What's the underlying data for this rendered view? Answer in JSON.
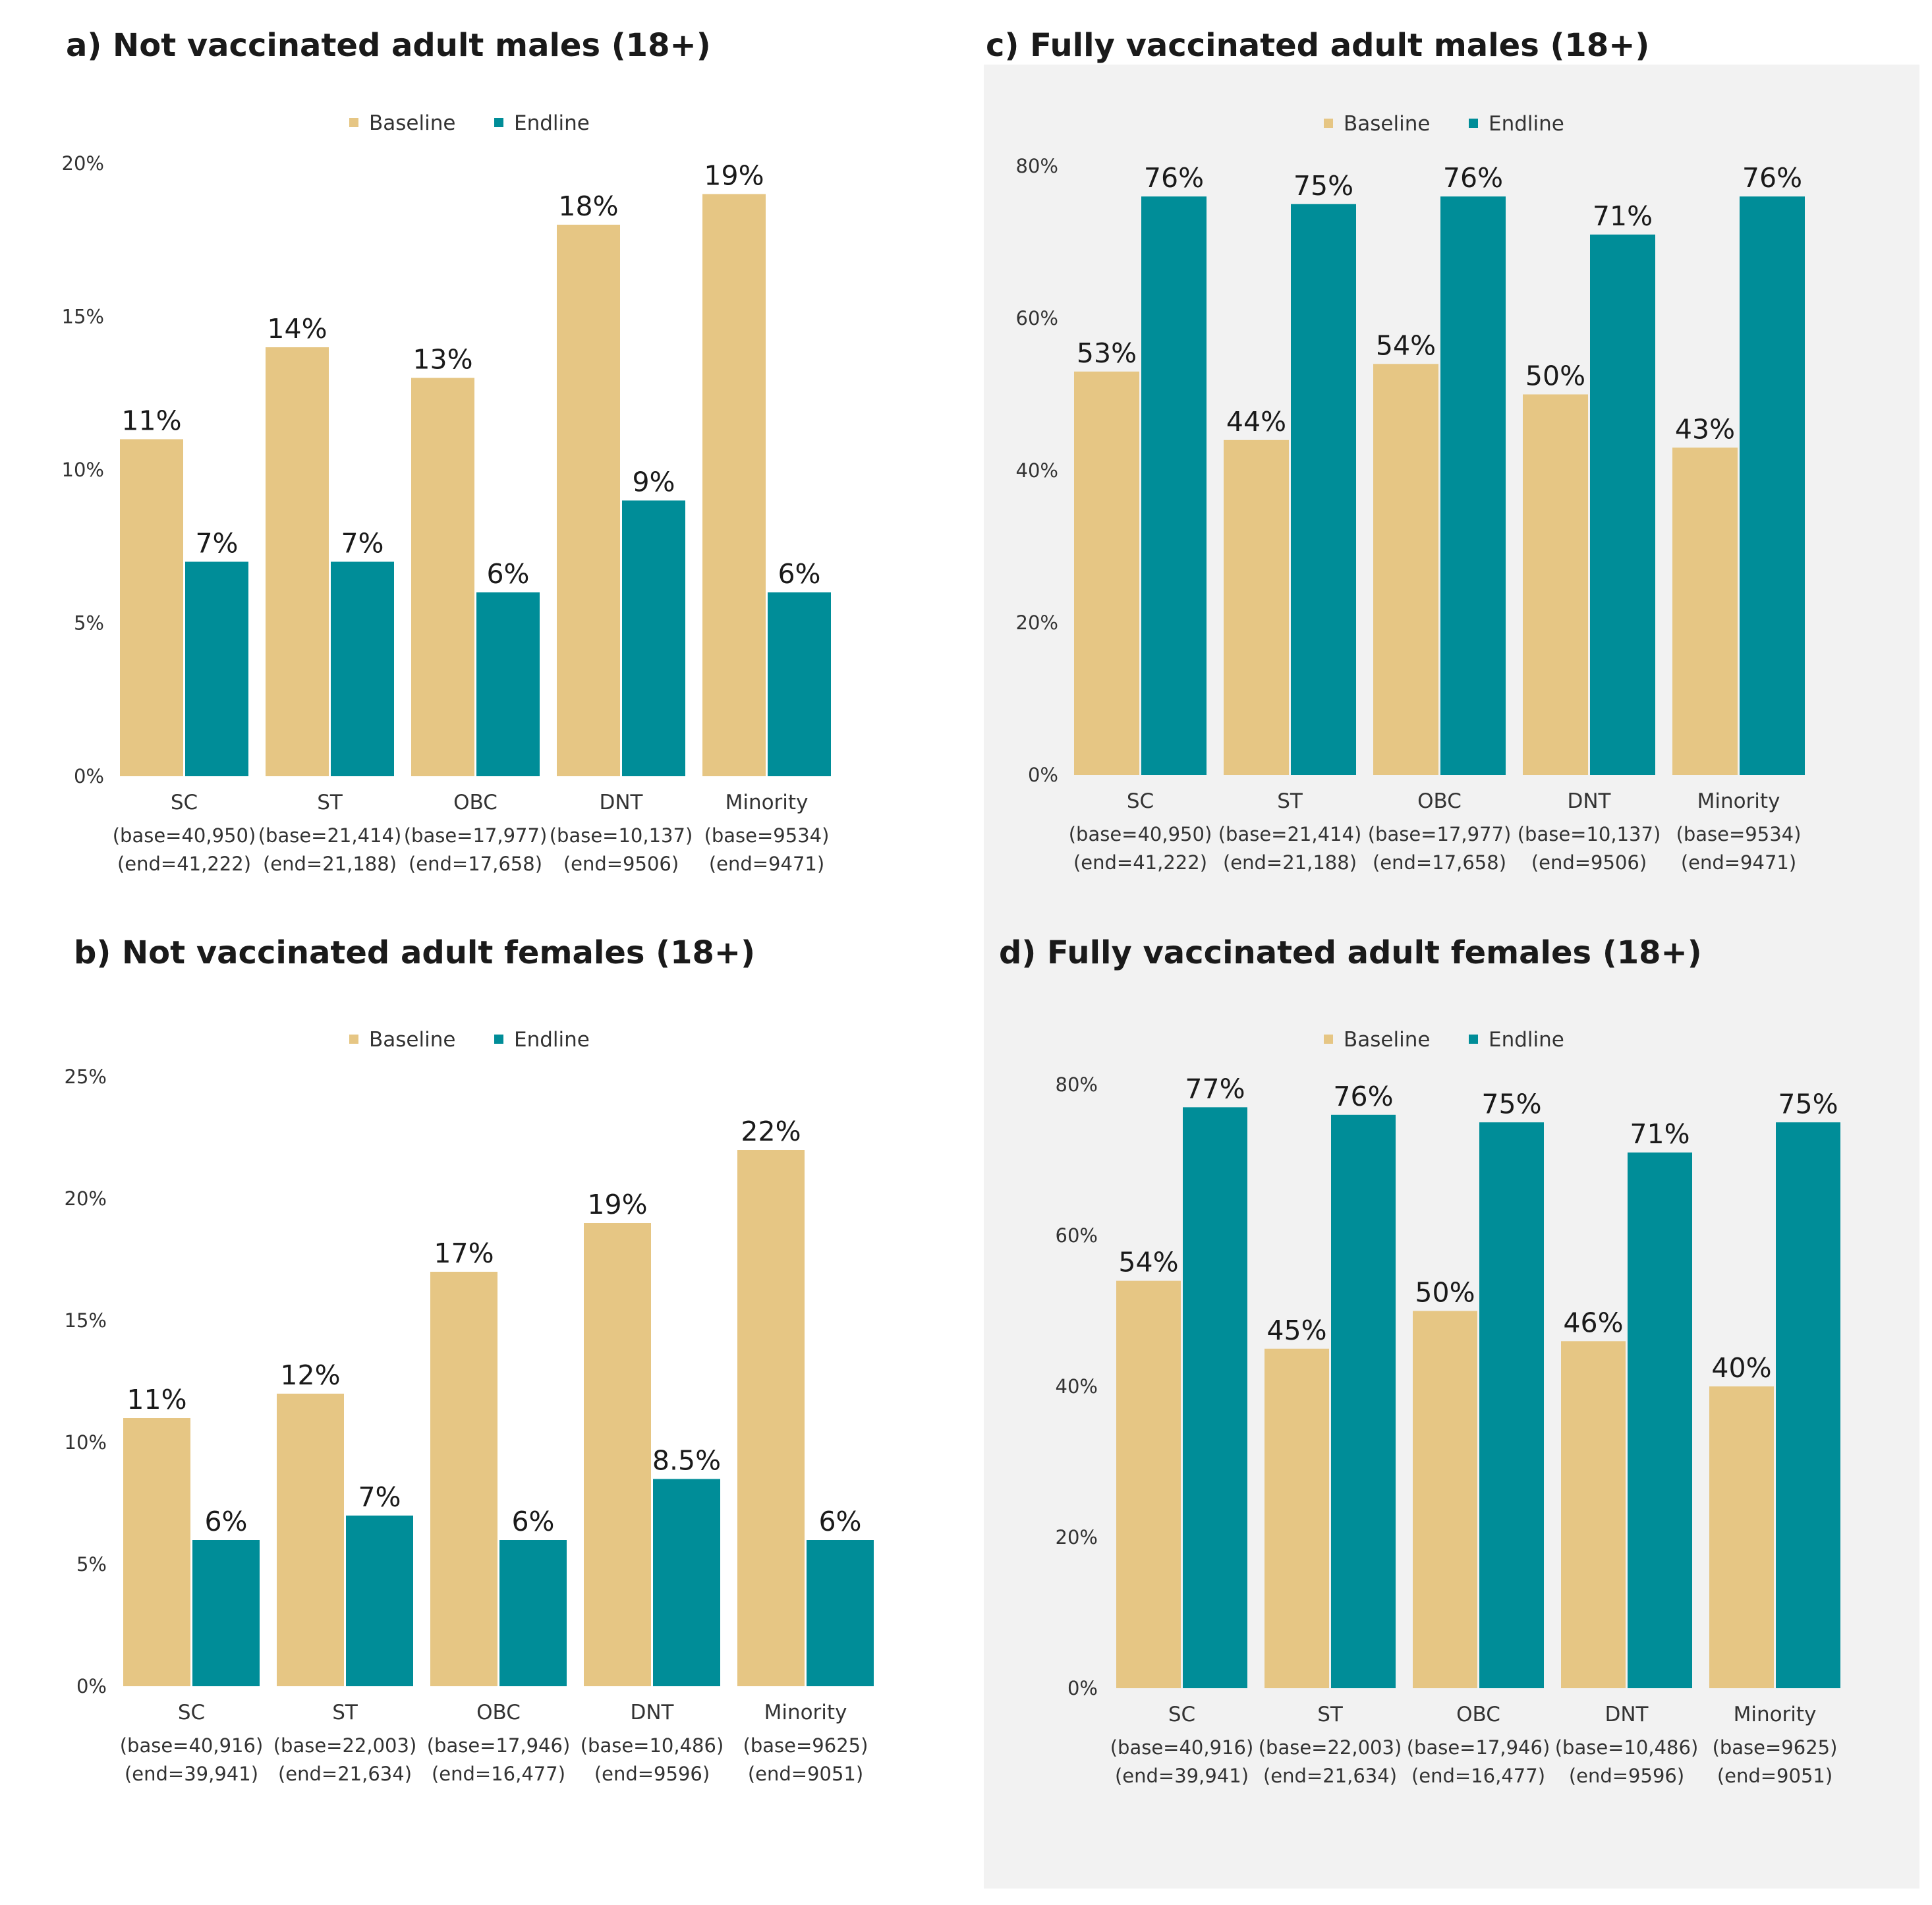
{
  "colors": {
    "baseline": "#e6c684",
    "endline": "#008d98",
    "panel_background": "#f2f2f2"
  },
  "chart_data": [
    {
      "id": "a",
      "type": "bar",
      "title": "a) Not vaccinated adult males (18+)",
      "legend": [
        "Baseline",
        "Endline"
      ],
      "legend_position": "top-center",
      "categories": [
        "SC",
        "ST",
        "OBC",
        "DNT",
        "Minority"
      ],
      "base_labels": [
        "(base=40,950)",
        "(base=21,414)",
        "(base=17,977)",
        "(base=10,137)",
        "(base=9534)"
      ],
      "end_labels": [
        "(end=41,222)",
        "(end=21,188)",
        "(end=17,658)",
        "(end=9506)",
        "(end=9471)"
      ],
      "series": [
        {
          "name": "Baseline",
          "values": [
            11,
            14,
            13,
            18,
            19
          ],
          "labels": [
            "11%",
            "14%",
            "13%",
            "18%",
            "19%"
          ]
        },
        {
          "name": "Endline",
          "values": [
            7,
            7,
            6,
            9,
            6
          ],
          "labels": [
            "7%",
            "7%",
            "6%",
            "9%",
            "6%"
          ]
        }
      ],
      "ylim": [
        0,
        20
      ],
      "yticks": [
        0,
        5,
        10,
        15,
        20
      ],
      "ytick_labels": [
        "0%",
        "5%",
        "10%",
        "15%",
        "20%"
      ],
      "grid": false
    },
    {
      "id": "c",
      "type": "bar",
      "title": "c) Fully vaccinated adult males (18+)",
      "legend": [
        "Baseline",
        "Endline"
      ],
      "legend_position": "top-center",
      "categories": [
        "SC",
        "ST",
        "OBC",
        "DNT",
        "Minority"
      ],
      "base_labels": [
        "(base=40,950)",
        "(base=21,414)",
        "(base=17,977)",
        "(base=10,137)",
        "(base=9534)"
      ],
      "end_labels": [
        "(end=41,222)",
        "(end=21,188)",
        "(end=17,658)",
        "(end=9506)",
        "(end=9471)"
      ],
      "series": [
        {
          "name": "Baseline",
          "values": [
            53,
            44,
            54,
            50,
            43
          ],
          "labels": [
            "53%",
            "44%",
            "54%",
            "50%",
            "43%"
          ]
        },
        {
          "name": "Endline",
          "values": [
            76,
            75,
            76,
            71,
            76
          ],
          "labels": [
            "76%",
            "75%",
            "76%",
            "71%",
            "76%"
          ]
        }
      ],
      "ylim": [
        0,
        80
      ],
      "yticks": [
        0,
        20,
        40,
        60,
        80
      ],
      "ytick_labels": [
        "0%",
        "20%",
        "40%",
        "60%",
        "80%"
      ],
      "grid": false
    },
    {
      "id": "b",
      "type": "bar",
      "title": "b) Not vaccinated adult females (18+)",
      "legend": [
        "Baseline",
        "Endline"
      ],
      "legend_position": "top-center",
      "categories": [
        "SC",
        "ST",
        "OBC",
        "DNT",
        "Minority"
      ],
      "base_labels": [
        "(base=40,916)",
        "(base=22,003)",
        "(base=17,946)",
        "(base=10,486)",
        "(base=9625)"
      ],
      "end_labels": [
        "(end=39,941)",
        "(end=21,634)",
        "(end=16,477)",
        "(end=9596)",
        "(end=9051)"
      ],
      "series": [
        {
          "name": "Baseline",
          "values": [
            11,
            12,
            17,
            19,
            22
          ],
          "labels": [
            "11%",
            "12%",
            "17%",
            "19%",
            "22%"
          ]
        },
        {
          "name": "Endline",
          "values": [
            6,
            7,
            6,
            8.5,
            6
          ],
          "labels": [
            "6%",
            "7%",
            "6%",
            "8.5%",
            "6%"
          ]
        }
      ],
      "ylim": [
        0,
        25
      ],
      "yticks": [
        0,
        5,
        10,
        15,
        20,
        25
      ],
      "ytick_labels": [
        "0%",
        "5%",
        "10%",
        "15%",
        "20%",
        "25%"
      ],
      "grid": false
    },
    {
      "id": "d",
      "type": "bar",
      "title": "d) Fully vaccinated adult females (18+)",
      "legend": [
        "Baseline",
        "Endline"
      ],
      "legend_position": "top-center",
      "categories": [
        "SC",
        "ST",
        "OBC",
        "DNT",
        "Minority"
      ],
      "base_labels": [
        "(base=40,916)",
        "(base=22,003)",
        "(base=17,946)",
        "(base=10,486)",
        "(base=9625)"
      ],
      "end_labels": [
        "(end=39,941)",
        "(end=21,634)",
        "(end=16,477)",
        "(end=9596)",
        "(end=9051)"
      ],
      "series": [
        {
          "name": "Baseline",
          "values": [
            54,
            45,
            50,
            46,
            40
          ],
          "labels": [
            "54%",
            "45%",
            "50%",
            "46%",
            "40%"
          ]
        },
        {
          "name": "Endline",
          "values": [
            77,
            76,
            75,
            71,
            75
          ],
          "labels": [
            "77%",
            "76%",
            "75%",
            "71%",
            "75%"
          ]
        }
      ],
      "ylim": [
        0,
        80
      ],
      "yticks": [
        0,
        20,
        40,
        60,
        80
      ],
      "ytick_labels": [
        "0%",
        "20%",
        "40%",
        "60%",
        "80%"
      ],
      "grid": false
    }
  ]
}
